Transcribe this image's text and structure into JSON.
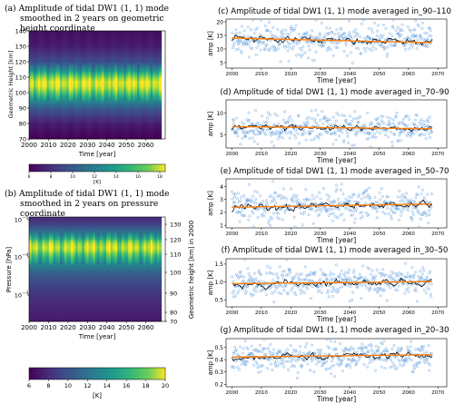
{
  "chart_data": [
    {
      "type": "heatmap",
      "title_lines": [
        "(a) Amplitude of tidal DW1 (1, 1) mode",
        "smoothed in 2 years on geometric",
        "height coordinate"
      ],
      "xlabel": "Time [year]",
      "ylabel": "Geometric Height [km]",
      "xticks": [
        "2000",
        "2010",
        "2020",
        "2030",
        "2040",
        "2050",
        "2060"
      ],
      "xlim": [
        2000,
        2070
      ],
      "yticks": [
        "70",
        "80",
        "90",
        "100",
        "110",
        "120",
        "130",
        "140"
      ],
      "ylim": [
        70,
        140
      ],
      "profile_height_km": [
        70,
        80,
        90,
        95,
        100,
        104,
        107,
        110,
        115,
        120,
        130,
        140
      ],
      "profile_amp_K": [
        6,
        7,
        9.5,
        12,
        15,
        17.5,
        18,
        16,
        12,
        9,
        7,
        6.5
      ],
      "colorbar": {
        "ticks": [
          "6",
          "8",
          "10",
          "12",
          "14",
          "16",
          "18"
        ],
        "label": "[K]",
        "range": [
          6,
          18.5
        ]
      }
    },
    {
      "type": "heatmap",
      "title_lines": [
        "(b) Amplitude of tidal DW1 (1, 1) mode",
        "smoothed in 2 years on pressure",
        "coordinate"
      ],
      "xlabel": "Time [year]",
      "ylabel": "Pressure [hPa]",
      "ylabel_right": "Geometric height [km] in 2000",
      "xticks": [
        "2000",
        "2010",
        "2020",
        "2030",
        "2040",
        "2050",
        "2060"
      ],
      "xlim": [
        2000,
        2070
      ],
      "yticks_log": [
        "10",
        "10",
        "10"
      ],
      "yticks_exp": [
        "−5",
        "−4",
        "−3"
      ],
      "yticks_right": [
        "130",
        "120",
        "110",
        "100",
        "90",
        "80",
        "70"
      ],
      "colorbar": {
        "ticks": [
          "6",
          "8",
          "10",
          "12",
          "14",
          "16",
          "18",
          "20"
        ],
        "label": "[K]",
        "range": [
          6,
          20
        ]
      }
    },
    {
      "type": "scatter",
      "title": "(c) Amplitude of tidal DW1 (1, 1) mode averaged in_90–110",
      "ylabel": "amp [K]",
      "xlabel": "Time [year]",
      "yticks": [
        5,
        10,
        15,
        20
      ],
      "ylim": [
        3,
        21
      ],
      "xticks": [
        "2000",
        "2010",
        "2020",
        "2030",
        "2040",
        "2050",
        "2060",
        "2070"
      ],
      "xlim": [
        1998,
        2073
      ],
      "mean": 13.5,
      "spread": 3.2,
      "trend_start": 14.0,
      "trend_end": 12.3
    },
    {
      "type": "scatter",
      "title": "(d) Amplitude of tidal DW1 (1, 1) mode averaged in_70–90",
      "ylabel": "amp [K]",
      "xlabel": "Time [year]",
      "yticks": [
        5,
        10
      ],
      "ylim": [
        2,
        13
      ],
      "xticks": [
        "2000",
        "2010",
        "2020",
        "2030",
        "2040",
        "2050",
        "2060",
        "2070"
      ],
      "xlim": [
        1998,
        2073
      ],
      "mean": 6.7,
      "spread": 1.9,
      "trend_start": 6.9,
      "trend_end": 6.4
    },
    {
      "type": "scatter",
      "title": "(e) Amplitude of tidal DW1 (1, 1) mode averaged in_50–70",
      "ylabel": "amp [K]",
      "xlabel": "Time [year]",
      "yticks": [
        1,
        2,
        3,
        4
      ],
      "ylim": [
        0.8,
        4.6
      ],
      "xticks": [
        "2000",
        "2010",
        "2020",
        "2030",
        "2040",
        "2050",
        "2060",
        "2070"
      ],
      "xlim": [
        1998,
        2073
      ],
      "mean": 2.5,
      "spread": 0.75,
      "trend_start": 2.4,
      "trend_end": 2.65
    },
    {
      "type": "scatter",
      "title": "(f) Amplitude of tidal DW1 (1, 1) mode averaged in_30–50",
      "ylabel": "amp [K]",
      "xlabel": "Time [year]",
      "yticks": [
        0.5,
        1.0,
        1.5
      ],
      "ylim": [
        0.3,
        1.65
      ],
      "xticks": [
        "2000",
        "2010",
        "2020",
        "2030",
        "2040",
        "2050",
        "2060",
        "2070"
      ],
      "xlim": [
        1998,
        2073
      ],
      "mean": 0.98,
      "spread": 0.25,
      "trend_start": 0.95,
      "trend_end": 1.01
    },
    {
      "type": "scatter",
      "title": "(g) Amplitude of tidal DW1 (1, 1) mode averaged in_20–30",
      "ylabel": "amp [K]",
      "xlabel": "Time [year]",
      "yticks": [
        0.2,
        0.3,
        0.4,
        0.5
      ],
      "ylim": [
        0.18,
        0.57
      ],
      "xticks": [
        "2000",
        "2010",
        "2020",
        "2030",
        "2040",
        "2050",
        "2060",
        "2070"
      ],
      "xlim": [
        1998,
        2073
      ],
      "mean": 0.42,
      "spread": 0.07,
      "trend_start": 0.42,
      "trend_end": 0.44
    }
  ],
  "colors": {
    "scatter_marker": "#4a90d9",
    "running_mean": "#000000",
    "trend_line": "#ff7f0e"
  }
}
